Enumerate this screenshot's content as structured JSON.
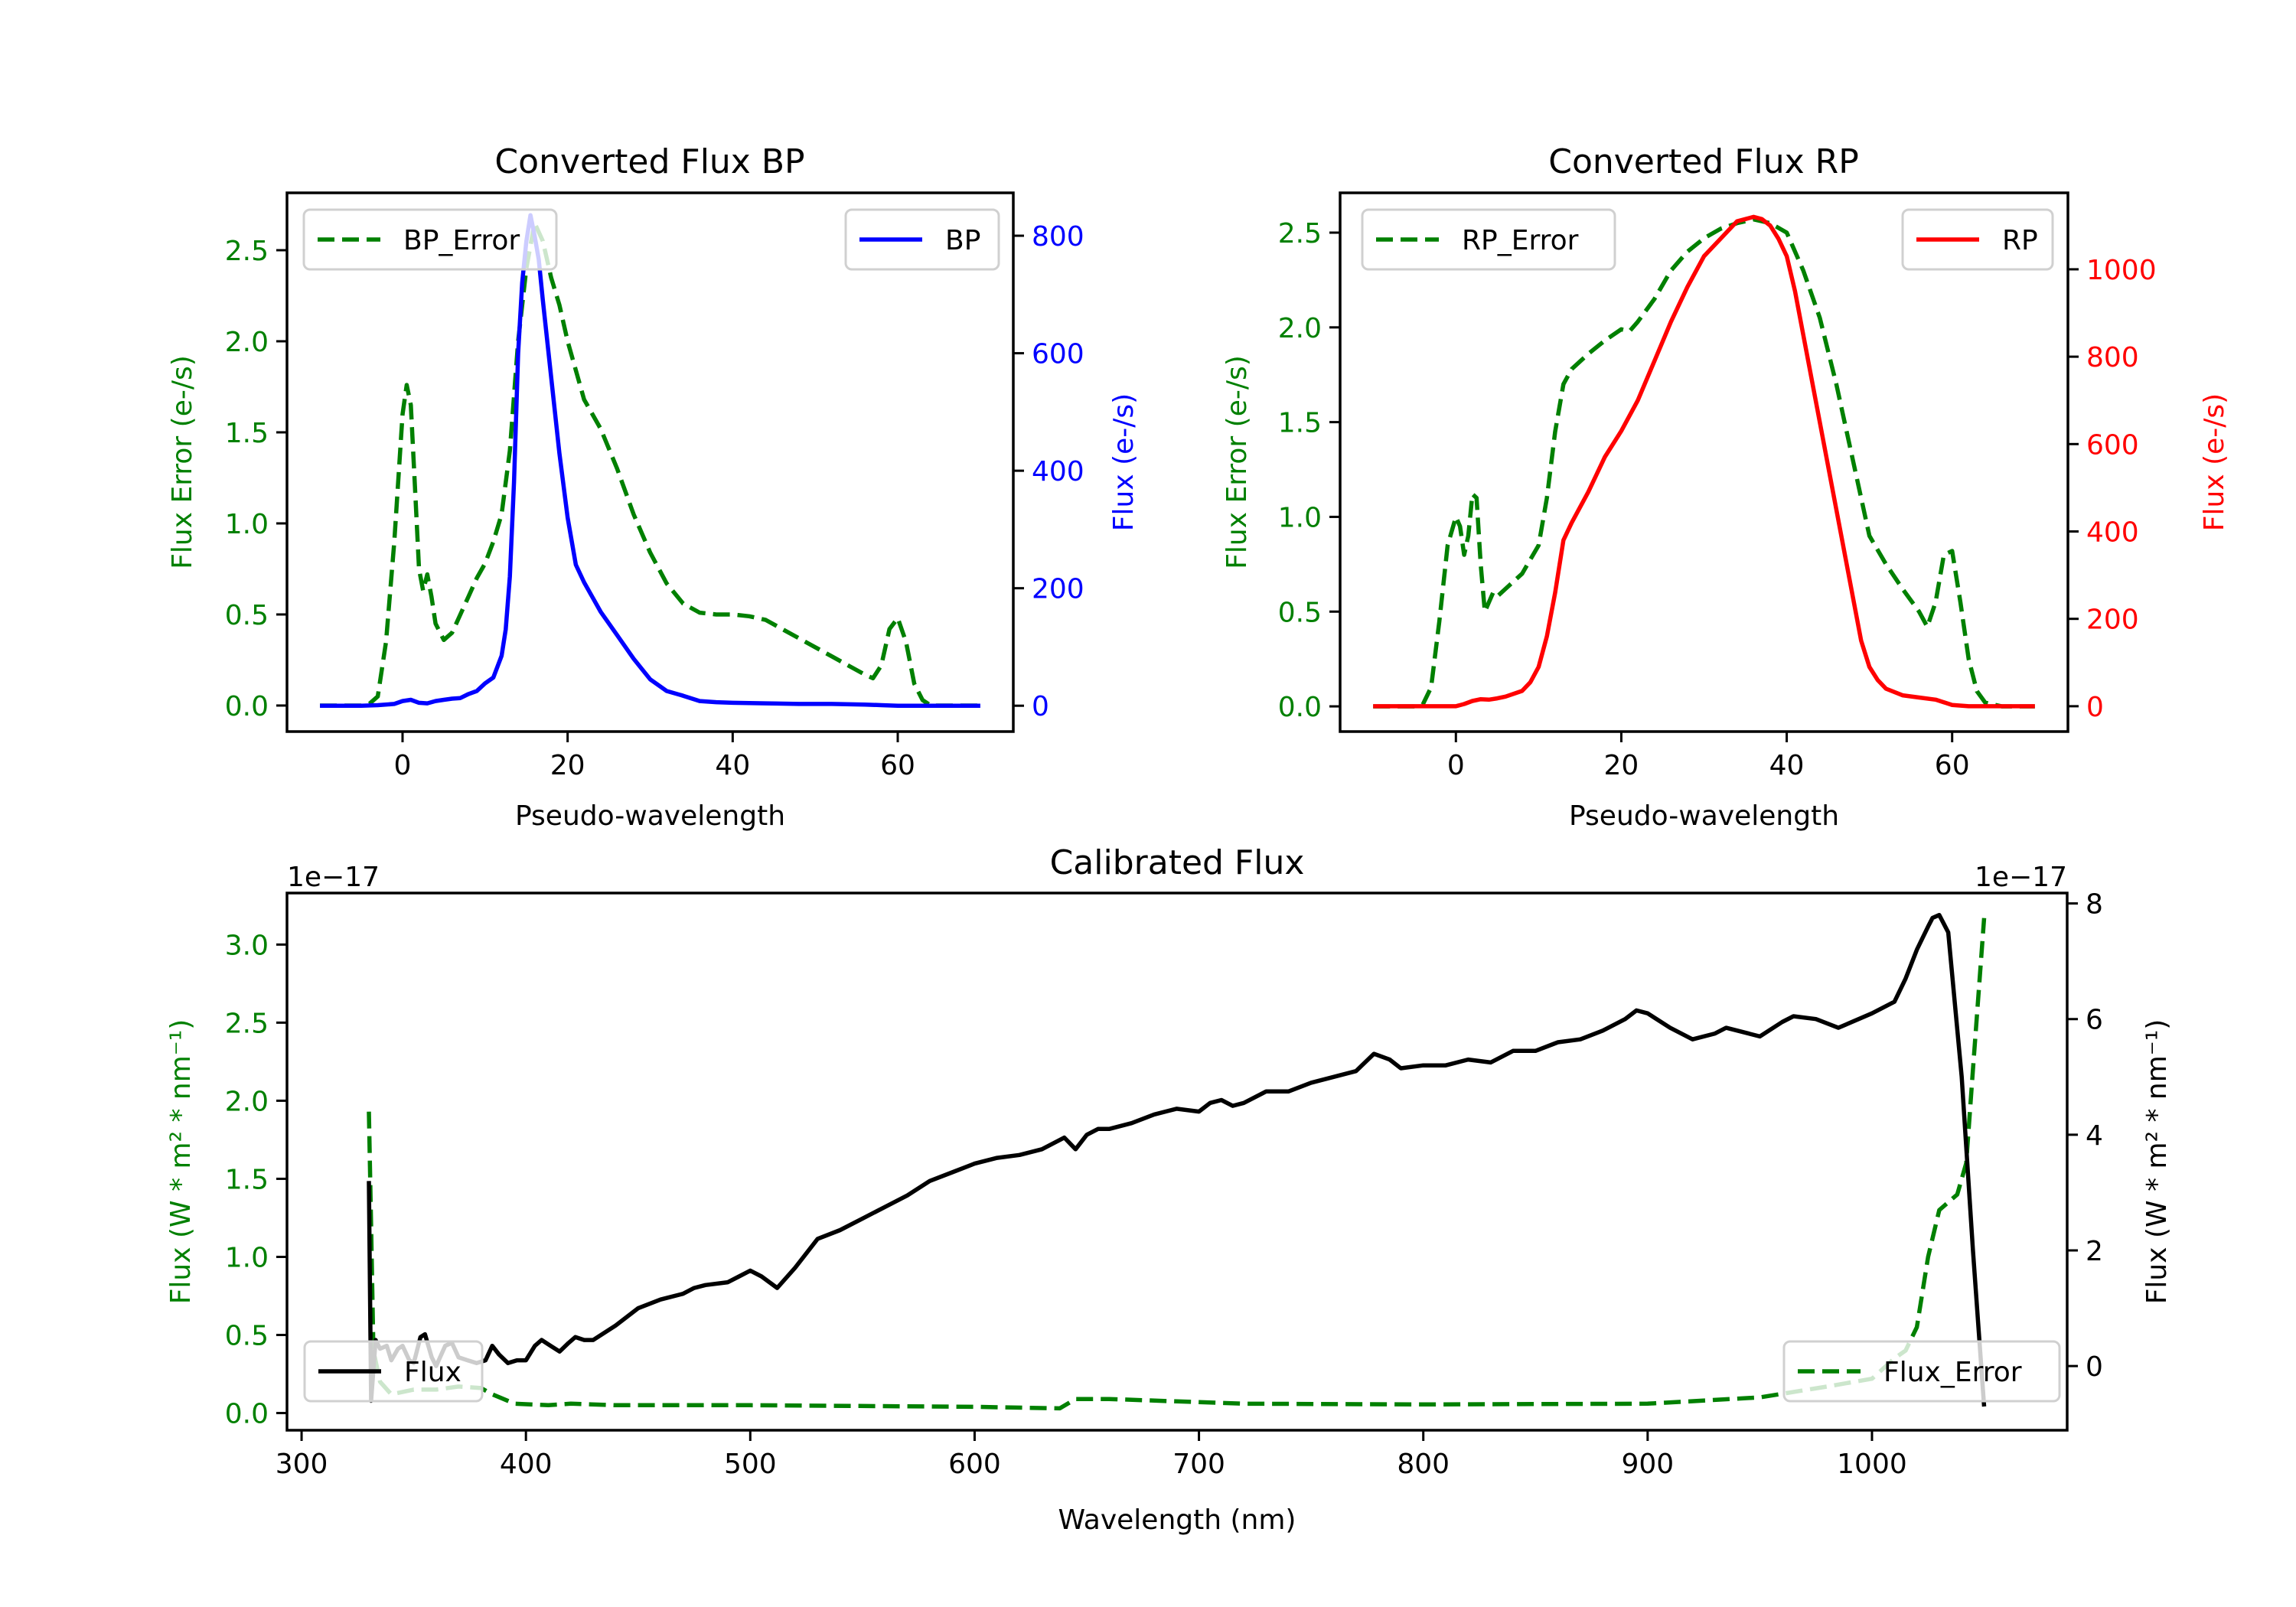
{
  "chart_data": [
    {
      "id": "bp",
      "type": "line",
      "title": "Converted Flux BP",
      "xlabel": "Pseudo-wavelength",
      "ylabel_left": "Flux Error (e-/s)",
      "ylabel_right": "Flux (e-/s)",
      "xlim": [
        -14,
        74
      ],
      "ylim_left": [
        -0.143,
        2.815
      ],
      "ylim_right": [
        -44,
        873
      ],
      "xticks": [
        0,
        20,
        40,
        60
      ],
      "xtick_labels": [
        "0",
        "20",
        "40",
        "60"
      ],
      "yticks_left": [
        0.0,
        0.5,
        1.0,
        1.5,
        2.0,
        2.5
      ],
      "ytick_labels_left": [
        "0.0",
        "0.5",
        "1.0",
        "1.5",
        "2.0",
        "2.5"
      ],
      "yticks_right": [
        0,
        200,
        400,
        600,
        800
      ],
      "ytick_labels_right": [
        "0",
        "200",
        "400",
        "600",
        "800"
      ],
      "left_color": "#008000",
      "right_color": "#0000ff",
      "grid": false,
      "series": [
        {
          "name": "BP_Error",
          "axis": "left",
          "style": "dashed",
          "color": "#008000",
          "legend": "top-left",
          "x": [
            -10,
            -5,
            -4,
            -3,
            -2,
            -1,
            0,
            0.5,
            1,
            1.5,
            2,
            2.5,
            3,
            3.5,
            4,
            5,
            6,
            7,
            8,
            9,
            10,
            11,
            12,
            13,
            14,
            15,
            16,
            17,
            18,
            19,
            20,
            22,
            24,
            26,
            28,
            30,
            32,
            34,
            36,
            38,
            40,
            42,
            44,
            46,
            48,
            50,
            52,
            54,
            56,
            57,
            58,
            59,
            60,
            61,
            62,
            63,
            64,
            66,
            70
          ],
          "y": [
            0,
            0,
            0.01,
            0.05,
            0.35,
            0.9,
            1.6,
            1.76,
            1.65,
            1.2,
            0.75,
            0.63,
            0.72,
            0.6,
            0.45,
            0.36,
            0.4,
            0.5,
            0.6,
            0.7,
            0.78,
            0.9,
            1.05,
            1.4,
            2.0,
            2.4,
            2.65,
            2.55,
            2.35,
            2.2,
            2.0,
            1.68,
            1.52,
            1.3,
            1.05,
            0.84,
            0.67,
            0.56,
            0.51,
            0.5,
            0.5,
            0.49,
            0.47,
            0.42,
            0.37,
            0.32,
            0.27,
            0.22,
            0.17,
            0.15,
            0.22,
            0.42,
            0.48,
            0.35,
            0.12,
            0.03,
            0.0,
            0.0,
            0.0
          ]
        },
        {
          "name": "BP",
          "axis": "right",
          "style": "solid",
          "color": "#0000ff",
          "legend": "top-right",
          "x": [
            -10,
            -5,
            -3,
            -1,
            0,
            1,
            2,
            3,
            4,
            5,
            6,
            7,
            8,
            9,
            10,
            11,
            12,
            12.5,
            13,
            13.5,
            14,
            14.5,
            15,
            15.5,
            16,
            16.5,
            17,
            18,
            19,
            20,
            21,
            22,
            23,
            24,
            26,
            28,
            30,
            32,
            34,
            36,
            38,
            40,
            44,
            48,
            52,
            56,
            58,
            60,
            62,
            66,
            70
          ],
          "y": [
            0,
            0,
            1,
            3,
            8,
            10,
            5,
            4,
            8,
            10,
            12,
            13,
            20,
            25,
            38,
            48,
            85,
            130,
            220,
            380,
            600,
            720,
            790,
            835,
            800,
            760,
            690,
            560,
            430,
            320,
            240,
            210,
            185,
            160,
            120,
            80,
            45,
            25,
            17,
            8,
            6,
            5,
            4,
            3,
            3,
            2,
            1,
            0,
            0,
            0,
            0
          ]
        }
      ]
    },
    {
      "id": "rp",
      "type": "line",
      "title": "Converted Flux RP",
      "xlabel": "Pseudo-wavelength",
      "ylabel_left": "Flux Error (e-/s)",
      "ylabel_right": "Flux (e-/s)",
      "xlim": [
        -14,
        74
      ],
      "ylim_left": [
        -0.133,
        2.71
      ],
      "ylim_right": [
        -58,
        1175
      ],
      "xticks": [
        0,
        20,
        40,
        60
      ],
      "xtick_labels": [
        "0",
        "20",
        "40",
        "60"
      ],
      "yticks_left": [
        0.0,
        0.5,
        1.0,
        1.5,
        2.0,
        2.5
      ],
      "ytick_labels_left": [
        "0.0",
        "0.5",
        "1.0",
        "1.5",
        "2.0",
        "2.5"
      ],
      "yticks_right": [
        0,
        200,
        400,
        600,
        800,
        1000
      ],
      "ytick_labels_right": [
        "0",
        "200",
        "400",
        "600",
        "800",
        "1000"
      ],
      "left_color": "#008000",
      "right_color": "#ff0000",
      "grid": false,
      "series": [
        {
          "name": "RP_Error",
          "axis": "left",
          "style": "dashed",
          "color": "#008000",
          "legend": "top-left",
          "x": [
            -10,
            -5,
            -4,
            -3,
            -2,
            -1,
            0,
            0.5,
            1,
            1.5,
            2,
            2.5,
            3,
            3.5,
            4,
            4.5,
            5,
            6,
            8,
            10,
            11,
            12,
            13,
            14,
            16,
            18,
            20,
            21,
            22,
            24,
            26,
            28,
            30,
            32,
            34,
            36,
            38,
            40,
            42,
            44,
            46,
            48,
            50,
            52,
            54,
            56,
            57,
            58,
            59,
            60,
            61,
            62,
            63,
            64,
            66,
            70
          ],
          "y": [
            0,
            0,
            0.01,
            0.1,
            0.45,
            0.85,
            1.0,
            0.95,
            0.8,
            0.9,
            1.12,
            1.1,
            0.75,
            0.5,
            0.55,
            0.6,
            0.58,
            0.62,
            0.7,
            0.85,
            1.1,
            1.45,
            1.7,
            1.78,
            1.86,
            1.93,
            1.99,
            1.98,
            2.03,
            2.15,
            2.3,
            2.4,
            2.47,
            2.52,
            2.55,
            2.57,
            2.55,
            2.5,
            2.3,
            2.05,
            1.7,
            1.3,
            0.9,
            0.75,
            0.62,
            0.5,
            0.42,
            0.55,
            0.8,
            0.82,
            0.55,
            0.25,
            0.08,
            0.02,
            0.0,
            0.0
          ]
        },
        {
          "name": "RP",
          "axis": "right",
          "style": "solid",
          "color": "#ff0000",
          "legend": "top-right",
          "x": [
            -10,
            -5,
            0,
            1,
            2,
            3,
            4,
            5,
            6,
            8,
            9,
            10,
            11,
            12,
            13,
            14,
            16,
            18,
            20,
            22,
            24,
            26,
            28,
            30,
            31,
            32,
            34,
            35,
            36,
            37,
            38,
            39,
            40,
            41,
            42,
            44,
            46,
            48,
            49,
            50,
            51,
            52,
            54,
            56,
            58,
            60,
            62,
            66,
            70
          ],
          "y": [
            0,
            0,
            0,
            5,
            12,
            16,
            15,
            18,
            22,
            35,
            55,
            90,
            160,
            260,
            380,
            420,
            490,
            570,
            630,
            700,
            790,
            880,
            960,
            1030,
            1050,
            1070,
            1110,
            1115,
            1120,
            1115,
            1100,
            1070,
            1030,
            950,
            850,
            650,
            450,
            250,
            150,
            90,
            60,
            40,
            25,
            20,
            15,
            3,
            0,
            0,
            0
          ]
        }
      ]
    },
    {
      "id": "calibrated",
      "type": "line",
      "title": "Calibrated Flux",
      "xlabel": "Wavelength (nm)",
      "ylabel_left": "Flux (W * m² * nm⁻¹)",
      "ylabel_right": "Flux (W * m² * nm⁻¹)",
      "offset_left": "1e−17",
      "offset_right": "1e−17",
      "xlim": [
        293.5,
        1087
      ],
      "ylim_left": [
        -0.11,
        3.33
      ],
      "ylim_right": [
        -1.11,
        8.18
      ],
      "xticks": [
        300,
        400,
        500,
        600,
        700,
        800,
        900,
        1000
      ],
      "xtick_labels": [
        "300",
        "400",
        "500",
        "600",
        "700",
        "800",
        "900",
        "1000"
      ],
      "yticks_left": [
        0.0,
        0.5,
        1.0,
        1.5,
        2.0,
        2.5,
        3.0
      ],
      "ytick_labels_left": [
        "0.0",
        "0.5",
        "1.0",
        "1.5",
        "2.0",
        "2.5",
        "3.0"
      ],
      "yticks_right": [
        0,
        2,
        4,
        6,
        8
      ],
      "ytick_labels_right": [
        "0",
        "2",
        "4",
        "6",
        "8"
      ],
      "left_color": "#008000",
      "right_color": "#000000",
      "grid": false,
      "series": [
        {
          "name": "Flux_Error",
          "axis": "left",
          "style": "dashed",
          "color": "#008000",
          "legend": "bottom-right",
          "x": [
            330,
            331,
            332,
            335,
            340,
            350,
            360,
            370,
            380,
            385,
            390,
            395,
            410,
            420,
            440,
            500,
            600,
            638,
            645,
            660,
            700,
            720,
            800,
            900,
            950,
            980,
            1000,
            1010,
            1015,
            1020,
            1025,
            1030,
            1038,
            1042,
            1045,
            1050
          ],
          "y": [
            1.93,
            1.2,
            0.4,
            0.2,
            0.12,
            0.15,
            0.15,
            0.17,
            0.16,
            0.12,
            0.09,
            0.06,
            0.05,
            0.06,
            0.05,
            0.05,
            0.04,
            0.03,
            0.09,
            0.09,
            0.07,
            0.06,
            0.055,
            0.06,
            0.1,
            0.17,
            0.22,
            0.35,
            0.4,
            0.55,
            1.0,
            1.3,
            1.4,
            1.6,
            2.2,
            3.17
          ]
        },
        {
          "name": "Flux",
          "axis": "right",
          "style": "solid",
          "color": "#000000",
          "legend": "bottom-left",
          "x": [
            330,
            331,
            333,
            335,
            338,
            340,
            343,
            345,
            348,
            350,
            353,
            355,
            358,
            360,
            364,
            367,
            370,
            374,
            378,
            382,
            385,
            388,
            392,
            396,
            400,
            404,
            407,
            411,
            415,
            419,
            422,
            426,
            430,
            440,
            450,
            460,
            470,
            475,
            480,
            490,
            495,
            500,
            505,
            512,
            520,
            530,
            540,
            550,
            560,
            570,
            580,
            590,
            600,
            610,
            620,
            630,
            640,
            645,
            650,
            655,
            660,
            670,
            680,
            690,
            700,
            705,
            710,
            715,
            720,
            730,
            740,
            750,
            760,
            770,
            778,
            785,
            790,
            800,
            810,
            820,
            830,
            840,
            850,
            860,
            870,
            880,
            890,
            895,
            900,
            910,
            920,
            930,
            935,
            945,
            950,
            960,
            965,
            975,
            985,
            1000,
            1010,
            1015,
            1020,
            1025,
            1027,
            1030,
            1034,
            1040,
            1045,
            1050
          ],
          "y": [
            3.2,
            -0.6,
            0.45,
            0.3,
            0.35,
            0.1,
            0.3,
            0.35,
            0.1,
            0.05,
            0.5,
            0.55,
            0.15,
            0.0,
            0.35,
            0.4,
            0.15,
            0.1,
            0.05,
            0.1,
            0.35,
            0.2,
            0.05,
            0.1,
            0.1,
            0.35,
            0.45,
            0.35,
            0.25,
            0.4,
            0.5,
            0.45,
            0.45,
            0.7,
            1.0,
            1.15,
            1.25,
            1.35,
            1.4,
            1.45,
            1.55,
            1.65,
            1.55,
            1.35,
            1.7,
            2.2,
            2.35,
            2.55,
            2.75,
            2.95,
            3.2,
            3.35,
            3.5,
            3.6,
            3.65,
            3.75,
            3.95,
            3.75,
            4.0,
            4.1,
            4.1,
            4.2,
            4.35,
            4.45,
            4.4,
            4.55,
            4.6,
            4.5,
            4.55,
            4.75,
            4.75,
            4.9,
            5.0,
            5.1,
            5.4,
            5.3,
            5.15,
            5.2,
            5.2,
            5.3,
            5.25,
            5.45,
            5.45,
            5.6,
            5.65,
            5.8,
            6.0,
            6.15,
            6.1,
            5.85,
            5.65,
            5.75,
            5.85,
            5.75,
            5.7,
            5.95,
            6.05,
            6.0,
            5.85,
            6.1,
            6.3,
            6.7,
            7.2,
            7.6,
            7.75,
            7.8,
            7.5,
            5.0,
            2.0,
            -0.7
          ]
        }
      ]
    }
  ]
}
